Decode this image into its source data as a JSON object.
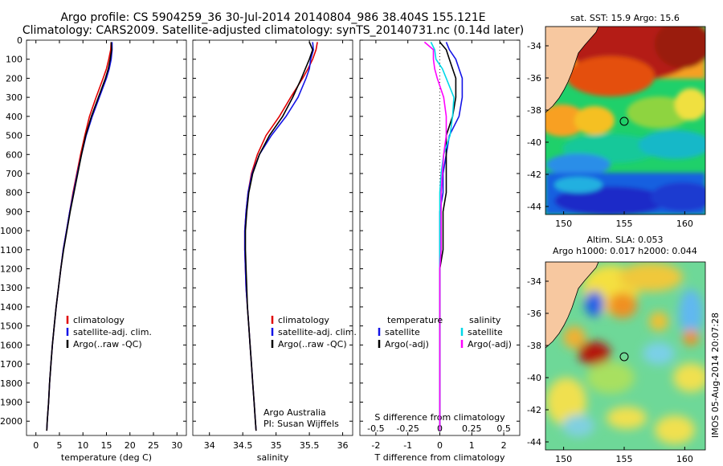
{
  "title": {
    "line1": "Argo profile: CS 5904259_36 30-Jul-2014 20140804_986 38.404S 155.121E",
    "line2": "Climatology: CARS2009. Satellite-adjusted climatology: synTS_20140731.nc (0.14d later)"
  },
  "colors": {
    "climatology": "#e00000",
    "satellite": "#1414e6",
    "argo": "#000000",
    "satellite_salinity": "#00d8e8",
    "argo_salinity": "#ff00ff",
    "land": "#f7c8a0"
  },
  "chart_data": [
    {
      "type": "line",
      "panel": "temperature",
      "xlabel": "temperature (deg C)",
      "ylabel": "",
      "xlim": [
        -2,
        32
      ],
      "ylim": [
        2075,
        0
      ],
      "xticks": [
        0,
        5,
        10,
        15,
        20,
        25,
        30
      ],
      "yticks": [
        0,
        100,
        200,
        300,
        400,
        500,
        600,
        700,
        800,
        900,
        1000,
        1100,
        1200,
        1300,
        1400,
        1500,
        1600,
        1700,
        1800,
        1900,
        2000
      ],
      "legend": [
        "climatology",
        "satellite-adj. clim.",
        "Argo(..raw -QC)"
      ],
      "series": [
        {
          "name": "climatology",
          "color_key": "climatology",
          "depth": [
            10,
            50,
            100,
            150,
            200,
            300,
            400,
            500,
            600,
            700,
            800,
            900,
            1000,
            1100,
            1200,
            1300,
            1400,
            1500,
            1600,
            1700,
            1800,
            1900,
            2000,
            2050
          ],
          "values": [
            16.0,
            15.9,
            15.5,
            15.0,
            14.3,
            12.8,
            11.4,
            10.4,
            9.5,
            8.7,
            7.9,
            7.2,
            6.5,
            5.8,
            5.3,
            4.8,
            4.3,
            3.9,
            3.5,
            3.2,
            2.9,
            2.7,
            2.4,
            2.3
          ]
        },
        {
          "name": "satellite-adj. clim.",
          "color_key": "satellite",
          "depth": [
            10,
            50,
            100,
            150,
            200,
            300,
            400,
            500,
            600,
            700,
            800,
            900,
            1000,
            1100,
            1200,
            1300,
            1400,
            1500,
            1600,
            1700,
            1800,
            1900,
            2000,
            2050
          ],
          "values": [
            16.2,
            16.2,
            16.0,
            15.6,
            15.0,
            13.5,
            12.0,
            10.7,
            9.7,
            8.8,
            8.0,
            7.2,
            6.5,
            5.8,
            5.3,
            4.8,
            4.3,
            3.9,
            3.5,
            3.2,
            2.9,
            2.7,
            2.4,
            2.3
          ]
        },
        {
          "name": "Argo(..raw -QC)",
          "color_key": "argo",
          "depth": [
            10,
            50,
            100,
            150,
            200,
            300,
            400,
            500,
            600,
            700,
            800,
            900,
            1000,
            1100,
            1200,
            1300,
            1400,
            1500,
            1600,
            1700,
            1800,
            1900,
            2000,
            2050
          ],
          "values": [
            16.0,
            16.1,
            15.8,
            15.4,
            14.8,
            13.3,
            11.8,
            10.6,
            9.7,
            8.9,
            8.1,
            7.3,
            6.6,
            5.9,
            5.3,
            4.8,
            4.3,
            3.9,
            3.5,
            3.2,
            2.9,
            2.7,
            2.4,
            2.3
          ]
        }
      ]
    },
    {
      "type": "line",
      "panel": "salinity",
      "xlabel": "salinity",
      "xlim": [
        33.75,
        36.15
      ],
      "ylim": [
        2075,
        0
      ],
      "xticks": [
        34,
        34.5,
        35,
        35.5,
        36
      ],
      "legend": [
        "climatology",
        "satellite-adj. clim.",
        "Argo(..raw -QC)"
      ],
      "annotation": [
        "Argo Australia",
        "PI: Susan Wijffels"
      ],
      "series": [
        {
          "name": "climatology",
          "color_key": "climatology",
          "depth": [
            10,
            50,
            100,
            150,
            200,
            300,
            400,
            500,
            600,
            700,
            800,
            900,
            1000,
            1100,
            1200,
            1300,
            1400,
            1500,
            1600,
            1700,
            1800,
            1900,
            2000,
            2050
          ],
          "values": [
            35.62,
            35.6,
            35.55,
            35.48,
            35.4,
            35.22,
            35.05,
            34.85,
            34.72,
            34.63,
            34.58,
            34.55,
            34.53,
            34.53,
            34.54,
            34.55,
            34.57,
            34.59,
            34.61,
            34.63,
            34.65,
            34.67,
            34.69,
            34.7
          ]
        },
        {
          "name": "satellite-adj. clim.",
          "color_key": "satellite",
          "depth": [
            10,
            50,
            100,
            150,
            200,
            300,
            400,
            500,
            600,
            700,
            800,
            900,
            1000,
            1100,
            1200,
            1300,
            1400,
            1500,
            1600,
            1700,
            1800,
            1900,
            2000,
            2050
          ],
          "values": [
            35.55,
            35.56,
            35.52,
            35.5,
            35.45,
            35.33,
            35.15,
            34.93,
            34.75,
            34.64,
            34.58,
            34.55,
            34.53,
            34.53,
            34.54,
            34.55,
            34.57,
            34.59,
            34.61,
            34.63,
            34.65,
            34.67,
            34.69,
            34.7
          ]
        },
        {
          "name": "Argo(..raw -QC)",
          "color_key": "argo",
          "depth": [
            10,
            50,
            100,
            150,
            200,
            300,
            400,
            500,
            600,
            700,
            800,
            900,
            1000,
            1100,
            1200,
            1300,
            1400,
            1500,
            1600,
            1700,
            1800,
            1900,
            2000,
            2050
          ],
          "values": [
            35.5,
            35.55,
            35.5,
            35.44,
            35.38,
            35.25,
            35.1,
            34.9,
            34.75,
            34.65,
            34.59,
            34.56,
            34.54,
            34.54,
            34.55,
            34.56,
            34.57,
            34.59,
            34.61,
            34.63,
            34.65,
            34.67,
            34.69,
            34.7
          ]
        }
      ]
    },
    {
      "type": "line",
      "panel": "differences",
      "xlabel": "T difference from climatology",
      "xlabel_top": "S difference from climatology",
      "xlim": [
        -2.5,
        2.5
      ],
      "ylim": [
        2075,
        0
      ],
      "xticks_T": [
        -2,
        -1,
        0,
        1,
        2
      ],
      "xticks_S": [
        -0.5,
        -0.25,
        0,
        0.25,
        0.5
      ],
      "legend_T": {
        "title": "temperature",
        "items": [
          "satellite",
          "Argo(-adj)"
        ]
      },
      "legend_S": {
        "title": "salinity",
        "items": [
          "satellite",
          "Argo(-adj)"
        ]
      },
      "series": [
        {
          "name": "T satellite",
          "color_key": "satellite",
          "depth": [
            10,
            50,
            100,
            150,
            200,
            300,
            400,
            500,
            600,
            700,
            800,
            900,
            1000,
            1100,
            1200,
            1300,
            1400,
            1500,
            1600,
            1700,
            1800,
            1900,
            2000,
            2050
          ],
          "values": [
            0.2,
            0.3,
            0.5,
            0.6,
            0.7,
            0.7,
            0.6,
            0.3,
            0.2,
            0.1,
            0.1,
            0.0,
            0.0,
            0.0,
            0.0,
            0.0,
            0.0,
            0.0,
            0.0,
            0.0,
            0.0,
            0.0,
            0.0,
            0.0
          ]
        },
        {
          "name": "T Argo(-adj)",
          "color_key": "argo",
          "depth": [
            10,
            50,
            100,
            150,
            200,
            300,
            400,
            500,
            600,
            700,
            800,
            900,
            1000,
            1100,
            1200,
            1300,
            1400,
            1500,
            1600,
            1700,
            1800,
            1900,
            2000,
            2050
          ],
          "values": [
            0.0,
            0.2,
            0.3,
            0.4,
            0.5,
            0.5,
            0.4,
            0.2,
            0.2,
            0.2,
            0.2,
            0.1,
            0.1,
            0.1,
            0.0,
            0.0,
            0.0,
            0.0,
            0.0,
            0.0,
            0.0,
            0.0,
            0.0,
            0.0
          ]
        },
        {
          "name": "S satellite",
          "color_key": "satellite_salinity",
          "depth": [
            10,
            50,
            100,
            150,
            200,
            300,
            400,
            500,
            600,
            700,
            800,
            900,
            1000,
            1100,
            1200,
            1300,
            1400,
            1500,
            1600,
            1700,
            1800,
            1900,
            2000,
            2050
          ],
          "values": [
            -0.07,
            -0.04,
            -0.03,
            0.02,
            0.05,
            0.11,
            0.1,
            0.08,
            0.03,
            0.01,
            0.0,
            0.0,
            0.0,
            0.0,
            0.0,
            0.0,
            0.0,
            0.0,
            0.0,
            0.0,
            0.0,
            0.0,
            0.0,
            0.0
          ]
        },
        {
          "name": "S Argo(-adj)",
          "color_key": "argo_salinity",
          "depth": [
            10,
            50,
            100,
            150,
            200,
            300,
            400,
            500,
            600,
            700,
            800,
            900,
            1000,
            1100,
            1200,
            1300,
            1400,
            1500,
            1600,
            1700,
            1800,
            1900,
            2000,
            2050
          ],
          "values": [
            -0.12,
            -0.05,
            -0.05,
            -0.04,
            -0.02,
            0.03,
            0.05,
            0.05,
            0.03,
            0.02,
            0.01,
            0.01,
            0.01,
            0.01,
            0.0,
            0.0,
            0.0,
            0.0,
            0.0,
            0.0,
            0.0,
            0.0,
            0.0,
            0.0
          ]
        }
      ]
    },
    {
      "type": "heatmap",
      "panel": "sst_map",
      "title": "sat. SST: 15.9 Argo: 15.6",
      "xlim": [
        148.5,
        161.7
      ],
      "ylim": [
        -44.5,
        -32.8
      ],
      "xticks": [
        150,
        155,
        160
      ],
      "yticks": [
        -34,
        -36,
        -38,
        -40,
        -42,
        -44
      ],
      "marker": {
        "lon": 155.121,
        "lat": -38.404
      }
    },
    {
      "type": "heatmap",
      "panel": "sla_map",
      "title_line1": "Altim. SLA: 0.053",
      "title_line2": "Argo h1000: 0.017 h2000: 0.044",
      "xlim": [
        148.5,
        161.7
      ],
      "ylim": [
        -44.5,
        -32.8
      ],
      "xticks": [
        150,
        155,
        160
      ],
      "yticks": [
        -34,
        -36,
        -38,
        -40,
        -42,
        -44
      ],
      "marker": {
        "lon": 155.121,
        "lat": -38.404
      }
    }
  ],
  "stamp": "IMOS 05-Aug-2014 20:07:28"
}
